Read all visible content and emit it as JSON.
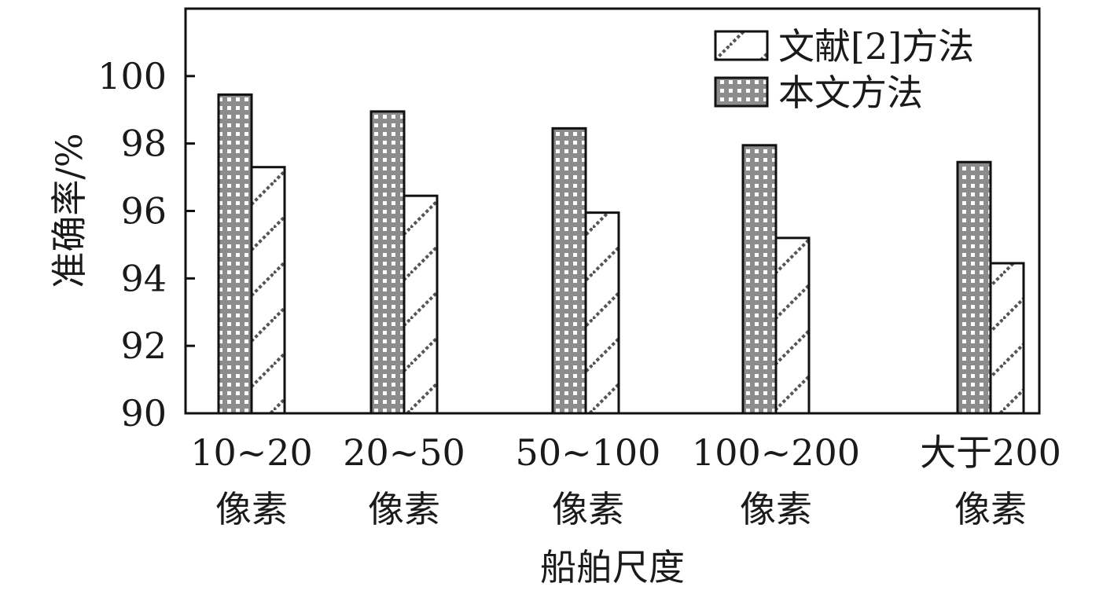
{
  "chart_data": {
    "type": "bar",
    "title": "",
    "xlabel": "船舶尺度",
    "ylabel": "准确率/%",
    "ylim": [
      90,
      102
    ],
    "yticks": [
      90,
      92,
      94,
      96,
      98,
      100
    ],
    "categories": [
      [
        "10~20",
        "像素"
      ],
      [
        "20~50",
        "像素"
      ],
      [
        "50~100",
        "像素"
      ],
      [
        "100~200",
        "像素"
      ],
      [
        "大于200",
        "像素"
      ]
    ],
    "series": [
      {
        "name": "本文方法",
        "values": [
          99.45,
          98.95,
          98.45,
          97.95,
          97.45
        ],
        "pattern": "dotted-grid",
        "color": "#8c8c8c"
      },
      {
        "name": "文献[2]方法",
        "values": [
          97.3,
          96.45,
          95.95,
          95.2,
          94.45
        ],
        "pattern": "diagonal-dashed",
        "color": "#ffffff"
      }
    ],
    "legend_order": [
      "文献[2]方法",
      "本文方法"
    ],
    "legend_position": "top-right",
    "grid": false
  }
}
